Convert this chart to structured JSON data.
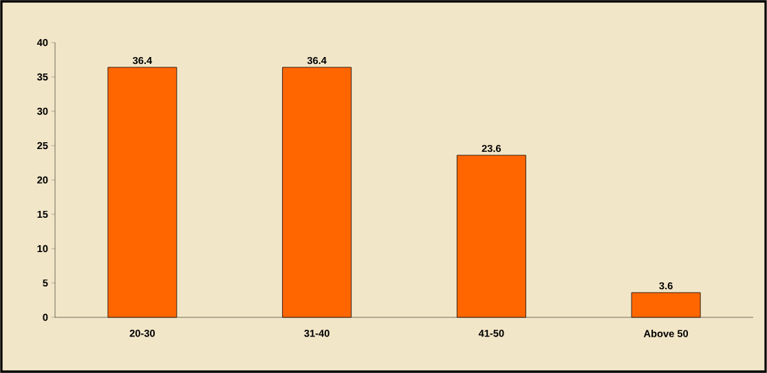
{
  "chart_data": {
    "type": "bar",
    "categories": [
      "20-30",
      "31-40",
      "41-50",
      "Above 50"
    ],
    "values": [
      36.4,
      36.4,
      23.6,
      3.6
    ],
    "color": "#ff6600",
    "ylim": [
      0,
      40
    ],
    "yticks": [
      0,
      5,
      10,
      15,
      20,
      25,
      30,
      35,
      40
    ],
    "data_labels": true,
    "grid": false
  }
}
